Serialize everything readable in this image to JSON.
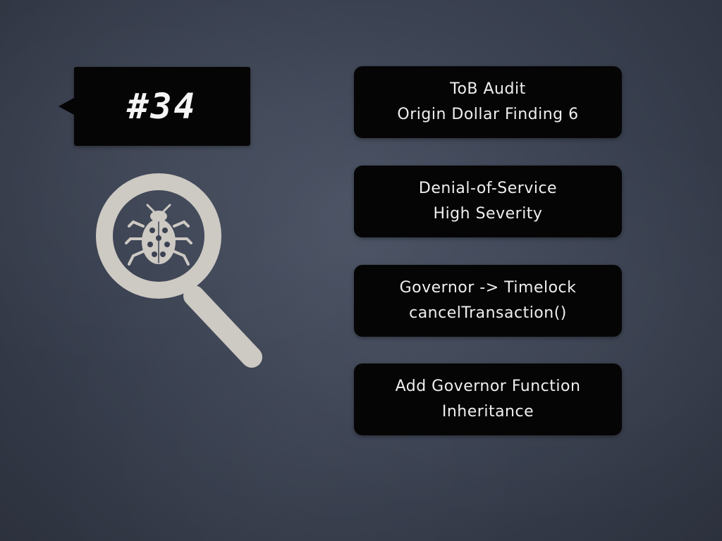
{
  "slide": {
    "badge": {
      "number": "#34"
    },
    "icon": {
      "name": "magnifier-bug-icon",
      "color": "#cdc9c3"
    },
    "cards": [
      {
        "line1": "ToB Audit",
        "line2": "Origin Dollar Finding 6"
      },
      {
        "line1": "Denial-of-Service",
        "line2": "High Severity"
      },
      {
        "line1": "Governor -> Timelock",
        "line2": "cancelTransaction()"
      },
      {
        "line1": "Add Governor Function",
        "line2": "Inheritance"
      }
    ],
    "colors": {
      "background": "#3b4252",
      "card": "#050505",
      "text": "#efefef"
    }
  }
}
